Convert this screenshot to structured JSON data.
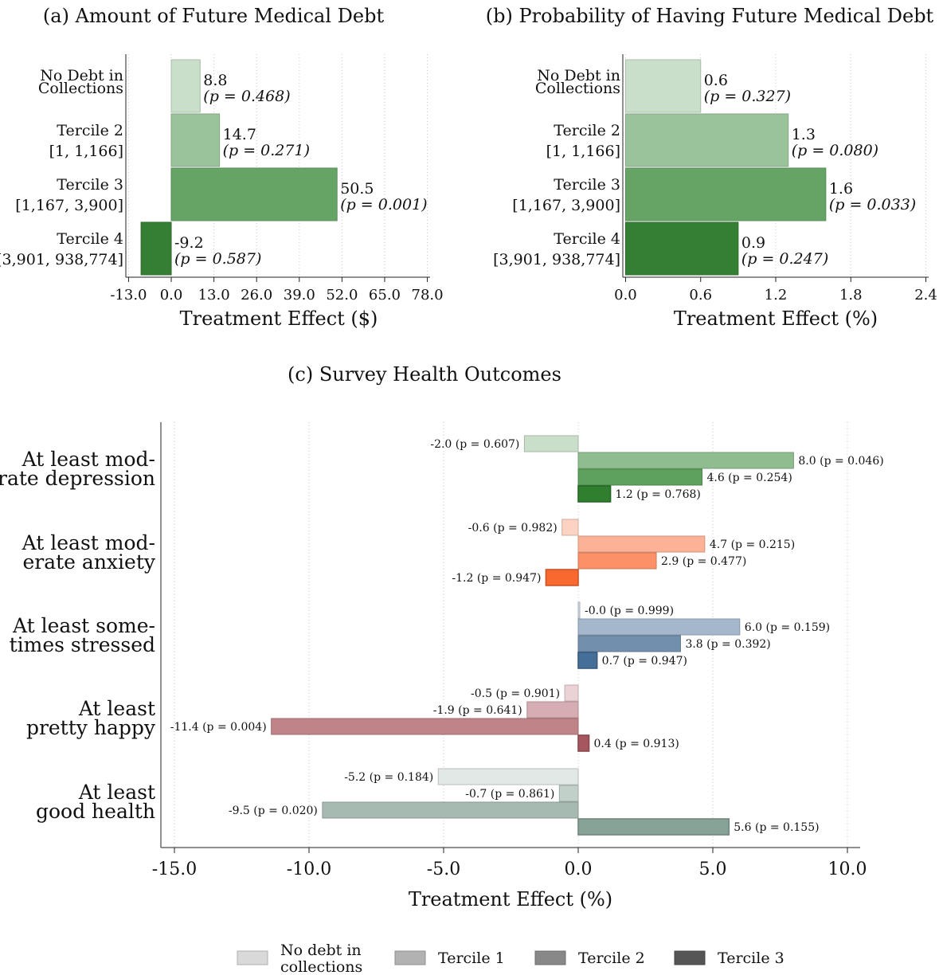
{
  "chart_data": [
    {
      "type": "bar",
      "orientation": "horizontal",
      "title": "(a) Amount of Future Medical Debt",
      "xlabel": "Treatment Effect ($)",
      "xlim": [
        -13,
        78
      ],
      "xticks": [
        -13,
        0,
        13,
        26,
        39,
        52,
        65,
        78
      ],
      "xtick_labels": [
        "-13.0",
        "0.0",
        "13.0",
        "26.0",
        "39.0",
        "52.0",
        "65.0",
        "78.0"
      ],
      "grid": "vertical dotted",
      "categories": [
        {
          "lines": [
            "No Debt in",
            "Collections"
          ]
        },
        {
          "lines": [
            "Tercile 2",
            "[1, 1,166]"
          ]
        },
        {
          "lines": [
            "Tercile 3",
            "[1,167, 3,900]"
          ]
        },
        {
          "lines": [
            "Tercile 4",
            "[3,901, 938,774]"
          ]
        }
      ],
      "values": [
        8.8,
        14.7,
        50.5,
        -9.2
      ],
      "value_labels": [
        "8.8",
        "14.7",
        "50.5",
        "-9.2"
      ],
      "p_labels": [
        "(p = 0.468)",
        "(p = 0.271)",
        "(p = 0.001)",
        "(p = 0.587)"
      ],
      "colors": [
        "#c9dfc9",
        "#9bc39b",
        "#66a466",
        "#357f35"
      ]
    },
    {
      "type": "bar",
      "orientation": "horizontal",
      "title": "(b) Probability of Having Future Medical Debt",
      "xlabel": "Treatment Effect (%)",
      "xlim": [
        0,
        2.4
      ],
      "xticks": [
        0,
        0.6,
        1.2,
        1.8,
        2.4
      ],
      "xtick_labels": [
        "0.0",
        "0.6",
        "1.2",
        "1.8",
        "2.4"
      ],
      "grid": "vertical dotted",
      "categories": [
        {
          "lines": [
            "No Debt in",
            "Collections"
          ]
        },
        {
          "lines": [
            "Tercile 2",
            "[1, 1,166]"
          ]
        },
        {
          "lines": [
            "Tercile 3",
            "[1,167, 3,900]"
          ]
        },
        {
          "lines": [
            "Tercile 4",
            "[3,901, 938,774]"
          ]
        }
      ],
      "values": [
        0.6,
        1.3,
        1.6,
        0.9
      ],
      "value_labels": [
        "0.6",
        "1.3",
        "1.6",
        "0.9"
      ],
      "p_labels": [
        "(p = 0.327)",
        "(p = 0.080)",
        "(p = 0.033)",
        "(p = 0.247)"
      ],
      "colors": [
        "#c9dfc9",
        "#9bc39b",
        "#66a466",
        "#357f35"
      ]
    },
    {
      "type": "bar",
      "orientation": "horizontal",
      "title": "(c) Survey Health Outcomes",
      "xlabel": "Treatment Effect (%)",
      "xlim": [
        -15,
        10
      ],
      "xticks": [
        -15,
        -10,
        -5,
        0,
        5,
        10
      ],
      "xtick_labels": [
        "-15.0",
        "-10.0",
        "-5.0",
        "0.0",
        "5.0",
        "10.0"
      ],
      "grid": "vertical dotted",
      "groups": [
        {
          "lines": [
            "At least mod-",
            "erate depression"
          ],
          "values": [
            -2.0,
            8.0,
            4.6,
            1.2
          ],
          "labels": [
            "-2.0 (p = 0.607)",
            "8.0 (p = 0.046)",
            "4.6 (p = 0.254)",
            "1.2 (p = 0.768)"
          ],
          "colors": [
            "#c9dfc9",
            "#8fbd8f",
            "#5da15d",
            "#2f7f2f"
          ]
        },
        {
          "lines": [
            "At least mod-",
            "erate anxiety"
          ],
          "values": [
            -0.6,
            4.7,
            2.9,
            -1.2
          ],
          "labels": [
            "-0.6 (p = 0.982)",
            "4.7 (p = 0.215)",
            "2.9 (p = 0.477)",
            "-1.2 (p = 0.947)"
          ],
          "colors": [
            "#fcd3c3",
            "#fcb297",
            "#fc9167",
            "#f8682f"
          ]
        },
        {
          "lines": [
            "At least some-",
            "times stressed"
          ],
          "values": [
            -0.0,
            6.0,
            3.8,
            0.7
          ],
          "labels": [
            "-0.0 (p = 0.999)",
            "6.0 (p = 0.159)",
            "3.8 (p = 0.392)",
            "0.7 (p = 0.947)"
          ],
          "colors": [
            "#cfd9e6",
            "#a4b7cc",
            "#7290ae",
            "#456e98"
          ]
        },
        {
          "lines": [
            "At least",
            "pretty happy"
          ],
          "values": [
            -0.5,
            -1.9,
            -11.4,
            0.4
          ],
          "labels": [
            "-0.5 (p = 0.901)",
            "-1.9 (p = 0.641)",
            "-11.4 (p = 0.004)",
            "0.4 (p = 0.913)"
          ],
          "colors": [
            "#ebd3d5",
            "#d6adb2",
            "#c08387",
            "#a6565e"
          ]
        },
        {
          "lines": [
            "At least",
            "good health"
          ],
          "values": [
            -5.2,
            -0.7,
            -9.5,
            5.6
          ],
          "labels": [
            "-5.2 (p = 0.184)",
            "-0.7 (p = 0.861)",
            "-9.5 (p = 0.020)",
            "5.6 (p = 0.155)"
          ],
          "colors": [
            "#e1e8e5",
            "#c1d0c9",
            "#a6bab2",
            "#87a398"
          ]
        }
      ],
      "legend": {
        "placement": "bottom",
        "entries": [
          {
            "lines": [
              "No debt in",
              "collections"
            ],
            "color": "#d9d9d9"
          },
          {
            "lines": [
              "Tercile 1"
            ],
            "color": "#b2b2b2"
          },
          {
            "lines": [
              "Tercile 2"
            ],
            "color": "#888888"
          },
          {
            "lines": [
              "Tercile 3"
            ],
            "color": "#555555"
          }
        ]
      }
    }
  ]
}
